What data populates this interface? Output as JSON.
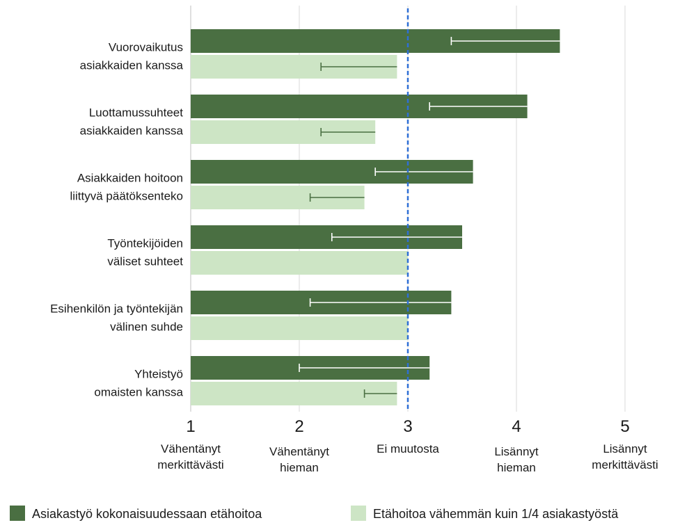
{
  "chart_data": {
    "type": "bar",
    "orientation": "horizontal",
    "xlim": [
      1,
      5
    ],
    "grid": true,
    "reference_line": {
      "x": 3,
      "style": "dashed",
      "color": "#2e6fd6"
    },
    "x_ticks": [
      {
        "value": 1,
        "label": "1",
        "desc": [
          "Vähentänyt",
          "merkittävästi"
        ]
      },
      {
        "value": 2,
        "label": "2",
        "desc": [
          "Vähentänyt",
          "hieman"
        ]
      },
      {
        "value": 3,
        "label": "3",
        "desc": [
          "Ei muutosta"
        ]
      },
      {
        "value": 4,
        "label": "4",
        "desc": [
          "Lisännyt",
          "hieman"
        ]
      },
      {
        "value": 5,
        "label": "5",
        "desc": [
          "Lisännyt",
          "merkittävästi"
        ]
      }
    ],
    "categories": [
      [
        "Vuorovaikutus",
        "asiakkaiden kanssa"
      ],
      [
        "Luottamussuhteet",
        "asiakkaiden kanssa"
      ],
      [
        "Asiakkaiden hoitoon",
        "liittyvä päätöksenteko"
      ],
      [
        "Työntekijöiden",
        "väliset suhteet"
      ],
      [
        "Esihenkilön ja työntekijän",
        "välinen suhde"
      ],
      [
        "Yhteistyö",
        "omaisten kanssa"
      ]
    ],
    "series": [
      {
        "name": "Asiakastyö kokonaisuudessaan etähoitoa",
        "color": "#4a6f42",
        "error_color": "#ffffff",
        "values": [
          4.4,
          4.1,
          3.6,
          3.5,
          3.4,
          3.2
        ],
        "error_low": [
          3.4,
          3.2,
          2.7,
          2.3,
          2.1,
          2.0
        ]
      },
      {
        "name": "Etähoitoa vähemmän kuin 1/4 asiakastyöstä",
        "color": "#cde5c5",
        "error_color": "#4a6f42",
        "values": [
          2.9,
          2.7,
          2.6,
          3.0,
          3.0,
          2.9
        ],
        "error_low": [
          2.2,
          2.2,
          2.1,
          null,
          null,
          2.6
        ]
      }
    ],
    "colors": {
      "grid": "#d9d9d9",
      "axis": "#bfbfbf",
      "text": "#1a1a1a"
    }
  }
}
